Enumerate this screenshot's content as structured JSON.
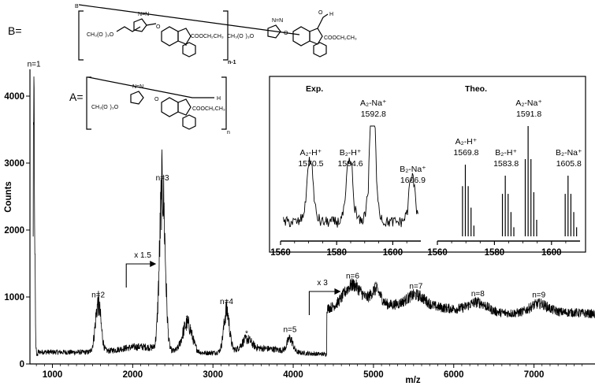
{
  "chart_data": [
    {
      "type": "line",
      "xlabel": "m/z",
      "ylabel": "Counts",
      "xlim": [
        720,
        7760
      ],
      "ylim": [
        0,
        4400
      ],
      "x_ticks": [
        1000,
        2000,
        3000,
        4000,
        5000,
        6000,
        7000
      ],
      "y_ticks": [
        0,
        1000,
        2000,
        3000,
        4000
      ],
      "grid": false,
      "peaks": [
        {
          "label": "n=1",
          "x": 770,
          "y": 4350
        },
        {
          "label": "n=2",
          "x": 1570,
          "y": 900
        },
        {
          "label": "n=3",
          "x": 2370,
          "y": 2650
        },
        {
          "label": "n=4",
          "x": 3170,
          "y": 800
        },
        {
          "label": "n=5",
          "x": 3960,
          "y": 380
        },
        {
          "label": "n=6",
          "x": 4740,
          "y": 1180
        },
        {
          "label": "n=7",
          "x": 5530,
          "y": 1030
        },
        {
          "label": "n=8",
          "x": 6300,
          "y": 920
        },
        {
          "label": "n=9",
          "x": 7060,
          "y": 900
        }
      ],
      "stars": [
        {
          "x": 2680,
          "y": 600
        },
        {
          "x": 3420,
          "y": 370
        },
        {
          "x": 5030,
          "y": 1100
        }
      ],
      "zoom_markers": [
        {
          "label": "x 1.5",
          "x": 1920
        },
        {
          "label": "x 3",
          "x": 4200
        }
      ]
    },
    {
      "type": "line",
      "title": "Exp.",
      "xlim": [
        1560,
        1610
      ],
      "x_ticks": [
        1560,
        1580,
        1600
      ],
      "peaks": [
        {
          "label": "A₂-H⁺",
          "value": "1570.5",
          "x": 1570.5,
          "rel": 0.55
        },
        {
          "label": "B₂-H⁺",
          "value": "1584.6",
          "x": 1584.6,
          "rel": 0.55
        },
        {
          "label": "A₂-Na⁺",
          "value": "1592.8",
          "x": 1592.8,
          "rel": 1.0
        },
        {
          "label": "B₂-Na⁺",
          "value": "1606.9",
          "x": 1606.9,
          "rel": 0.4
        }
      ]
    },
    {
      "type": "bar",
      "title": "Theo.",
      "xlim": [
        1560,
        1610
      ],
      "x_ticks": [
        1560,
        1580,
        1600
      ],
      "peaks": [
        {
          "label": "A₂-H⁺",
          "value": "1569.8",
          "x": 1569.8,
          "rel": 0.65
        },
        {
          "label": "B₂-H⁺",
          "value": "1583.8",
          "x": 1583.8,
          "rel": 0.55
        },
        {
          "label": "A₂-Na⁺",
          "value": "1591.8",
          "x": 1591.8,
          "rel": 1.0
        },
        {
          "label": "B₂-Na⁺",
          "value": "1605.8",
          "x": 1605.8,
          "rel": 0.55
        }
      ]
    }
  ],
  "structures": {
    "b_label": "B=",
    "a_label": "A=",
    "b_end_left": "B",
    "h_label": "H",
    "o_label": "O",
    "n_minus_1": "n-1",
    "n_sub": "n",
    "chain_text": "CH₃(O  )₃O",
    "ester_text": "COOCH₂CH₃",
    "triazole_text": "N=N"
  }
}
